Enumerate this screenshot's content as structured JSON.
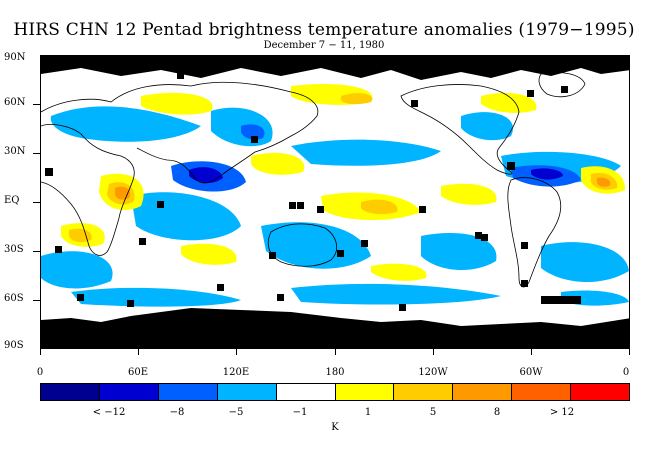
{
  "title": "HIRS CHN 12 Pentad brightness temperature anomalies (1979−1995)",
  "subtitle": "December 7 − 11, 1980",
  "map": {
    "lat_labels": [
      "90N",
      "60N",
      "30N",
      "EQ",
      "30S",
      "60S",
      "90S"
    ],
    "lon_labels": [
      "0",
      "60E",
      "120E",
      "180",
      "120W",
      "60W",
      "0"
    ],
    "missing_color": "#000000",
    "coastline_color": "#000000"
  },
  "legend": {
    "colors": [
      "#000090",
      "#0000d0",
      "#0060ff",
      "#00b4ff",
      "#ffffff",
      "#ffff00",
      "#ffcc00",
      "#ff9900",
      "#ff6000",
      "#ff0000"
    ],
    "labels": [
      "< −12",
      "−8",
      "−5",
      "−1",
      "1",
      "5",
      "8",
      "> 12"
    ],
    "unit": "K"
  }
}
